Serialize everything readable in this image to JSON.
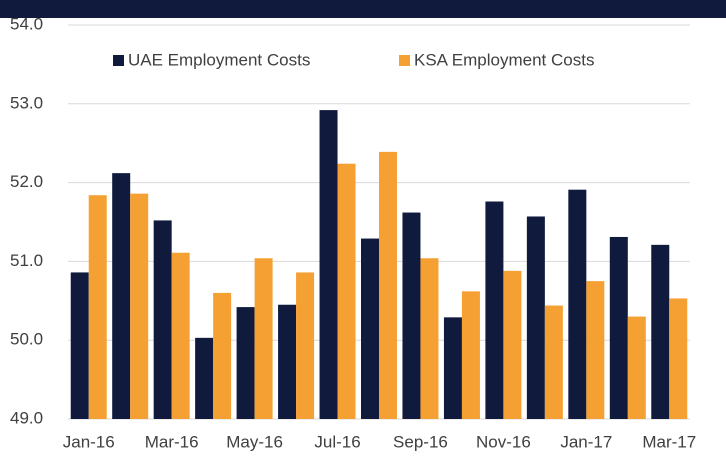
{
  "chart_data": {
    "type": "bar",
    "categories": [
      "Jan-16",
      null,
      "Mar-16",
      null,
      "May-16",
      null,
      "Jul-16",
      null,
      "Sep-16",
      null,
      "Nov-16",
      null,
      "Jan-17",
      null,
      "Mar-17"
    ],
    "series": [
      {
        "name": "UAE Employment Costs",
        "color": "#0f1a3c",
        "values": [
          50.86,
          52.12,
          51.52,
          50.03,
          50.42,
          50.45,
          52.92,
          51.29,
          51.62,
          50.29,
          51.76,
          51.57,
          51.91,
          51.31,
          51.21
        ]
      },
      {
        "name": "KSA Employment Costs",
        "color": "#f5a033",
        "values": [
          51.84,
          51.86,
          51.11,
          50.6,
          51.04,
          50.86,
          52.24,
          52.39,
          51.04,
          50.62,
          50.88,
          50.44,
          50.75,
          50.3,
          50.53
        ]
      }
    ],
    "ylim": [
      49,
      54
    ],
    "yticks": [
      {
        "value": 49,
        "label": "49.0"
      },
      {
        "value": 50,
        "label": "50.0"
      },
      {
        "value": 51,
        "label": "51.0"
      },
      {
        "value": 52,
        "label": "52.0"
      },
      {
        "value": 53,
        "label": "53.0"
      },
      {
        "value": 54,
        "label": "54.0"
      }
    ],
    "grid": true,
    "legend": "top"
  }
}
